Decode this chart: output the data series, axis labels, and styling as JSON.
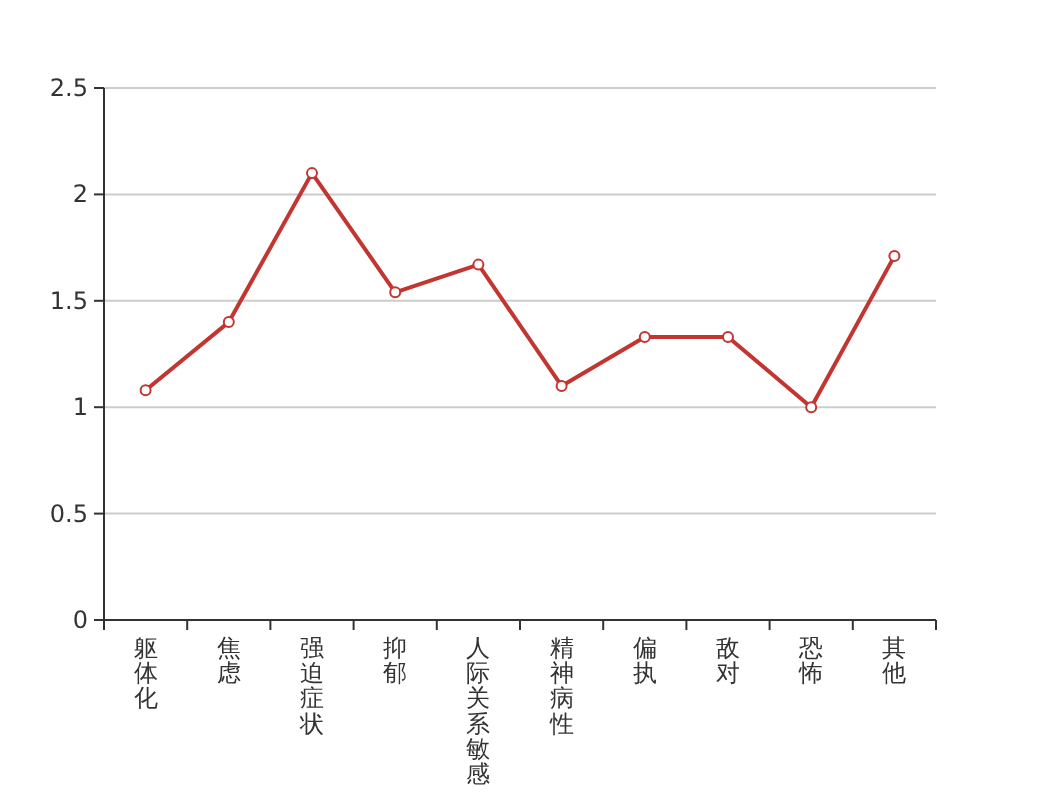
{
  "chart_data": {
    "type": "line",
    "categories": [
      "躯体化",
      "焦虑",
      "强迫症状",
      "抑郁",
      "人际关系敏感",
      "精神病性",
      "偏执",
      "敌对",
      "恐怖",
      "其他"
    ],
    "values": [
      1.08,
      1.4,
      2.1,
      1.54,
      1.67,
      1.1,
      1.33,
      1.33,
      1.0,
      1.71
    ],
    "color": "#c23531",
    "ylim": [
      0,
      2.5
    ],
    "yticks": [
      0,
      0.5,
      1,
      1.5,
      2,
      2.5
    ],
    "grid": "y",
    "marker": "circle",
    "line_style": "solid"
  }
}
